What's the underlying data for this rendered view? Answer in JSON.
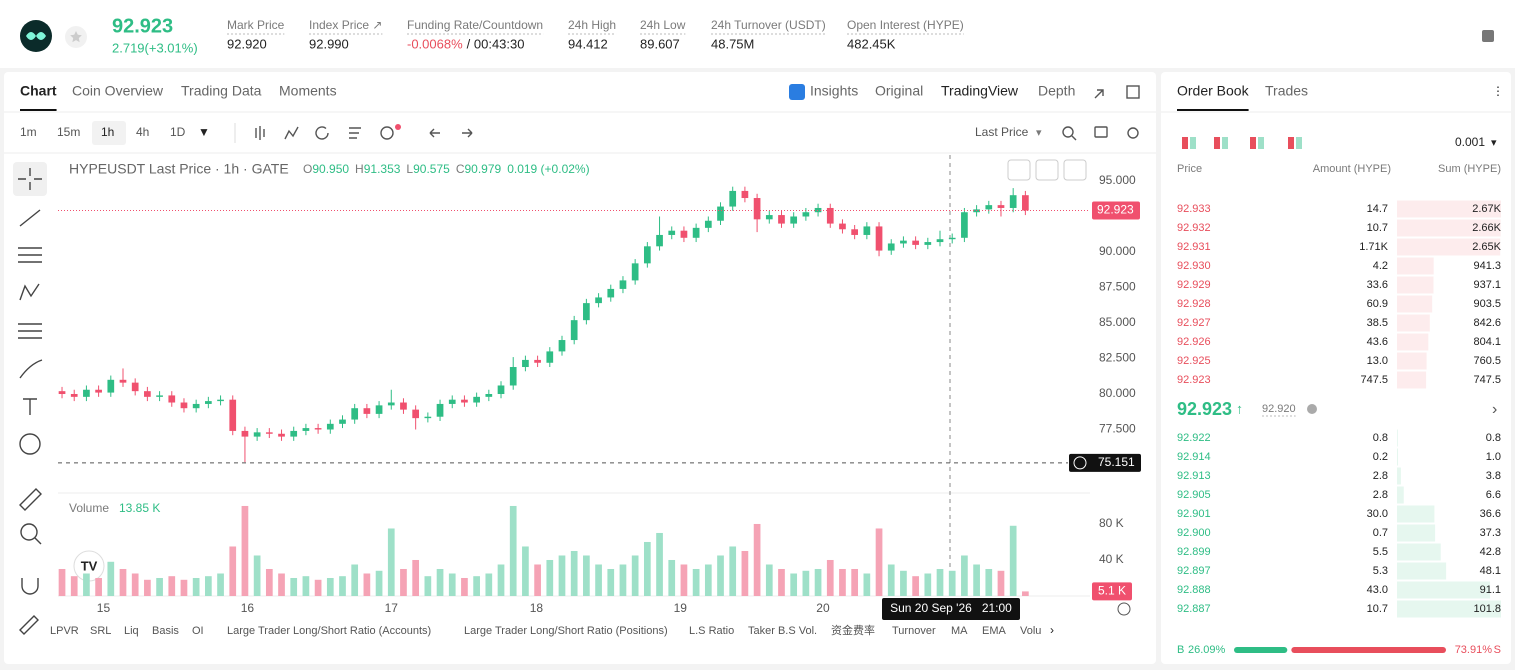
{
  "header": {
    "price": "92.923",
    "change": "2.719(+3.01%)",
    "stats": [
      {
        "label": "Mark Price",
        "value": "92.920"
      },
      {
        "label": "Index Price ↗",
        "value": "92.990"
      },
      {
        "label": "Funding Rate/Countdown",
        "value": "-0.0068%",
        "extra": "/ 00:43:30"
      },
      {
        "label": "24h High",
        "value": "94.412"
      },
      {
        "label": "24h Low",
        "value": "89.607"
      },
      {
        "label": "24h Turnover (USDT)",
        "value": "48.75M"
      },
      {
        "label": "Open Interest (HYPE)",
        "value": "482.45K"
      }
    ]
  },
  "tabs": [
    "Chart",
    "Coin Overview",
    "Trading Data",
    "Moments"
  ],
  "view_tabs": [
    "Insights",
    "Original",
    "TradingView",
    "Depth"
  ],
  "intervals": [
    "1m",
    "15m",
    "1h",
    "4h",
    "1D"
  ],
  "price_type": "Last Price",
  "chart": {
    "type": "candlestick",
    "legend": "HYPEUSDT Last Price · 1h · GATE",
    "ohlc": [
      {
        "k": "O",
        "v": "90.950"
      },
      {
        "k": "H",
        "v": "91.353"
      },
      {
        "k": "L",
        "v": "90.575"
      },
      {
        "k": "C",
        "v": "90.979"
      }
    ],
    "change": "0.019 (+0.02%)",
    "up_color": "#2ebd85",
    "down_color": "#f0506e",
    "ylim": [
      73.24,
      96.83
    ],
    "yticks": [
      {
        "value": 77.5,
        "label": "77.500"
      },
      {
        "value": 80,
        "label": "80.000"
      },
      {
        "value": 82.5,
        "label": "82.500"
      },
      {
        "value": 85,
        "label": "85.000"
      },
      {
        "value": 87.5,
        "label": "87.500"
      },
      {
        "value": 90,
        "label": "90.000"
      },
      {
        "value": 95,
        "label": "95.000"
      }
    ],
    "xlim": [
      -0.33,
      84.3
    ],
    "xticks": [
      {
        "value": 3.4,
        "label": "15"
      },
      {
        "value": 15.2,
        "label": "16"
      },
      {
        "value": 27,
        "label": "17"
      },
      {
        "value": 38.9,
        "label": "18"
      },
      {
        "value": 50.7,
        "label": "19"
      },
      {
        "value": 62.4,
        "label": "20"
      }
    ],
    "last_price": {
      "value": 92.923,
      "label": "92.923"
    },
    "low_marker": {
      "value": 75.151,
      "label": "75.151"
    },
    "crosshair_label": "Sun 20 Sep '26   21:00",
    "candles": [
      [
        80.2,
        80.5,
        79.7,
        80.0
      ],
      [
        80.0,
        80.3,
        79.5,
        79.8
      ],
      [
        79.8,
        80.6,
        79.5,
        80.3
      ],
      [
        80.3,
        80.6,
        79.8,
        80.1
      ],
      [
        80.1,
        81.3,
        79.8,
        81.0
      ],
      [
        81.0,
        81.8,
        80.5,
        80.8
      ],
      [
        80.8,
        81.1,
        79.9,
        80.2
      ],
      [
        80.2,
        80.5,
        79.5,
        79.8
      ],
      [
        79.8,
        80.2,
        79.5,
        79.9
      ],
      [
        79.9,
        80.2,
        79.1,
        79.4
      ],
      [
        79.4,
        79.7,
        78.7,
        79.0
      ],
      [
        79.0,
        79.6,
        78.7,
        79.3
      ],
      [
        79.3,
        79.8,
        79.0,
        79.5
      ],
      [
        79.5,
        79.9,
        79.2,
        79.6
      ],
      [
        79.6,
        79.9,
        77.1,
        77.4
      ],
      [
        77.4,
        77.7,
        75.2,
        77.0
      ],
      [
        77.0,
        77.6,
        76.7,
        77.3
      ],
      [
        77.3,
        77.6,
        76.9,
        77.2
      ],
      [
        77.2,
        77.5,
        76.7,
        77.0
      ],
      [
        77.0,
        77.7,
        76.7,
        77.4
      ],
      [
        77.4,
        77.9,
        77.1,
        77.6
      ],
      [
        77.6,
        77.9,
        77.2,
        77.5
      ],
      [
        77.5,
        78.2,
        77.2,
        77.9
      ],
      [
        77.9,
        78.5,
        77.6,
        78.2
      ],
      [
        78.2,
        79.3,
        77.9,
        79.0
      ],
      [
        79.0,
        79.3,
        78.3,
        78.6
      ],
      [
        78.6,
        79.5,
        78.3,
        79.2
      ],
      [
        79.2,
        80.3,
        78.9,
        79.4
      ],
      [
        79.4,
        79.7,
        78.6,
        78.9
      ],
      [
        78.9,
        79.2,
        77.5,
        78.3
      ],
      [
        78.3,
        78.7,
        78.0,
        78.4
      ],
      [
        78.4,
        79.6,
        78.1,
        79.3
      ],
      [
        79.3,
        79.9,
        79.0,
        79.6
      ],
      [
        79.6,
        79.9,
        79.1,
        79.4
      ],
      [
        79.4,
        80.1,
        79.1,
        79.8
      ],
      [
        79.8,
        80.3,
        79.5,
        80.0
      ],
      [
        80.0,
        80.9,
        79.7,
        80.6
      ],
      [
        80.6,
        82.6,
        80.3,
        81.9
      ],
      [
        81.9,
        82.7,
        81.6,
        82.4
      ],
      [
        82.4,
        82.7,
        81.9,
        82.2
      ],
      [
        82.2,
        83.3,
        81.9,
        83.0
      ],
      [
        83.0,
        84.1,
        82.7,
        83.8
      ],
      [
        83.8,
        85.5,
        83.5,
        85.2
      ],
      [
        85.2,
        86.7,
        84.9,
        86.4
      ],
      [
        86.4,
        87.1,
        86.1,
        86.8
      ],
      [
        86.8,
        87.7,
        86.5,
        87.4
      ],
      [
        87.4,
        88.3,
        87.1,
        88.0
      ],
      [
        88.0,
        89.5,
        87.7,
        89.2
      ],
      [
        89.2,
        90.7,
        88.9,
        90.4
      ],
      [
        90.4,
        92.5,
        90.1,
        91.2
      ],
      [
        91.2,
        91.8,
        90.9,
        91.5
      ],
      [
        91.5,
        91.8,
        90.7,
        91.0
      ],
      [
        91.0,
        92.0,
        90.7,
        91.7
      ],
      [
        91.7,
        92.5,
        91.4,
        92.2
      ],
      [
        92.2,
        93.5,
        91.9,
        93.2
      ],
      [
        93.2,
        94.6,
        92.9,
        94.3
      ],
      [
        94.3,
        94.6,
        93.5,
        93.8
      ],
      [
        93.8,
        94.1,
        91.4,
        92.3
      ],
      [
        92.3,
        92.9,
        92.0,
        92.6
      ],
      [
        92.6,
        92.9,
        91.7,
        92.0
      ],
      [
        92.0,
        92.8,
        91.7,
        92.5
      ],
      [
        92.5,
        93.1,
        92.2,
        92.8
      ],
      [
        92.8,
        93.4,
        92.5,
        93.1
      ],
      [
        93.1,
        93.4,
        91.7,
        92.0
      ],
      [
        92.0,
        92.3,
        91.3,
        91.6
      ],
      [
        91.6,
        91.9,
        90.9,
        91.2
      ],
      [
        91.2,
        92.1,
        90.9,
        91.8
      ],
      [
        91.8,
        92.1,
        89.7,
        90.1
      ],
      [
        90.1,
        90.9,
        89.8,
        90.6
      ],
      [
        90.6,
        91.1,
        90.3,
        90.8
      ],
      [
        90.8,
        91.1,
        90.2,
        90.5
      ],
      [
        90.5,
        91.0,
        90.2,
        90.7
      ],
      [
        90.7,
        91.5,
        90.4,
        90.9
      ],
      [
        90.9,
        91.3,
        90.6,
        91.0
      ],
      [
        91.0,
        93.1,
        90.7,
        92.8
      ],
      [
        92.8,
        93.3,
        92.5,
        93.0
      ],
      [
        93.0,
        93.6,
        92.7,
        93.3
      ],
      [
        93.3,
        93.6,
        92.5,
        93.1
      ],
      [
        93.1,
        94.5,
        92.8,
        94.0
      ],
      [
        94.0,
        94.3,
        92.6,
        92.923
      ]
    ],
    "volume": {
      "title": "Volume",
      "current": "13.85 K",
      "ylim": [
        0,
        114.4
      ],
      "yticks": [
        {
          "value": 40,
          "label": "40 K"
        },
        {
          "value": 80,
          "label": "80 K"
        }
      ],
      "values": [
        30,
        22,
        25,
        20,
        38,
        30,
        25,
        18,
        20,
        22,
        18,
        20,
        22,
        25,
        55,
        100,
        45,
        30,
        25,
        20,
        22,
        18,
        20,
        22,
        35,
        25,
        28,
        75,
        30,
        40,
        22,
        30,
        25,
        20,
        22,
        25,
        35,
        100,
        55,
        35,
        40,
        45,
        50,
        45,
        35,
        30,
        35,
        45,
        60,
        70,
        40,
        35,
        30,
        35,
        45,
        55,
        50,
        80,
        35,
        30,
        25,
        28,
        30,
        40,
        30,
        30,
        25,
        75,
        35,
        28,
        22,
        25,
        30,
        28,
        45,
        35,
        30,
        28,
        78,
        5.1
      ],
      "last_label": "5.1 K"
    }
  },
  "indicators": [
    "LPVR",
    "SRL",
    "Liq",
    "Basis",
    "OI",
    "Large Trader Long/Short Ratio (Accounts)",
    "Large Trader Long/Short Ratio (Positions)",
    "L.S Ratio",
    "Taker B.S Vol.",
    "资金费率",
    "Turnover",
    "MA",
    "EMA",
    "Volu"
  ],
  "order_book": {
    "tabs": [
      "Order Book",
      "Trades"
    ],
    "precision": "0.001",
    "headers": [
      "Price",
      "Amount (HYPE)",
      "Sum (HYPE)"
    ],
    "asks": [
      {
        "price": "92.933",
        "amount": "14.7",
        "sum": {
          "value": 2670,
          "label": "2.67K"
        }
      },
      {
        "price": "92.932",
        "amount": "10.7",
        "sum": {
          "value": 2660,
          "label": "2.66K"
        }
      },
      {
        "price": "92.931",
        "amount": "1.71K",
        "sum": {
          "value": 2650,
          "label": "2.65K"
        }
      },
      {
        "price": "92.930",
        "amount": "4.2",
        "sum": 941.3
      },
      {
        "price": "92.929",
        "amount": "33.6",
        "sum": 937.1
      },
      {
        "price": "92.928",
        "amount": "60.9",
        "sum": 903.5
      },
      {
        "price": "92.927",
        "amount": "38.5",
        "sum": 842.6
      },
      {
        "price": "92.926",
        "amount": "43.6",
        "sum": 804.1
      },
      {
        "price": "92.925",
        "amount": "13.0",
        "sum": 760.5
      },
      {
        "price": "92.923",
        "amount": "747.5",
        "sum": 747.5
      }
    ],
    "mid": "92.923",
    "mark": "92.920",
    "bids": [
      {
        "price": "92.922",
        "amount": "0.8",
        "sum": 0.8
      },
      {
        "price": "92.914",
        "amount": "0.2",
        "sum": {
          "value": 1,
          "label": "1.0"
        }
      },
      {
        "price": "92.913",
        "amount": "2.8",
        "sum": 3.8
      },
      {
        "price": "92.905",
        "amount": "2.8",
        "sum": 6.6
      },
      {
        "price": "92.901",
        "amount": "30.0",
        "sum": 36.6
      },
      {
        "price": "92.900",
        "amount": "0.7",
        "sum": 37.3
      },
      {
        "price": "92.899",
        "amount": "5.5",
        "sum": 42.8
      },
      {
        "price": "92.897",
        "amount": "5.3",
        "sum": 48.1
      },
      {
        "price": "92.888",
        "amount": "43.0",
        "sum": 91.1
      },
      {
        "price": "92.887",
        "amount": "10.7",
        "sum": 101.8
      }
    ],
    "buy_letter": "B",
    "sell_letter": "S",
    "buy": {
      "value": 26.09,
      "label": "26.09%"
    },
    "sell": {
      "value": 73.91,
      "label": "73.91%"
    }
  }
}
